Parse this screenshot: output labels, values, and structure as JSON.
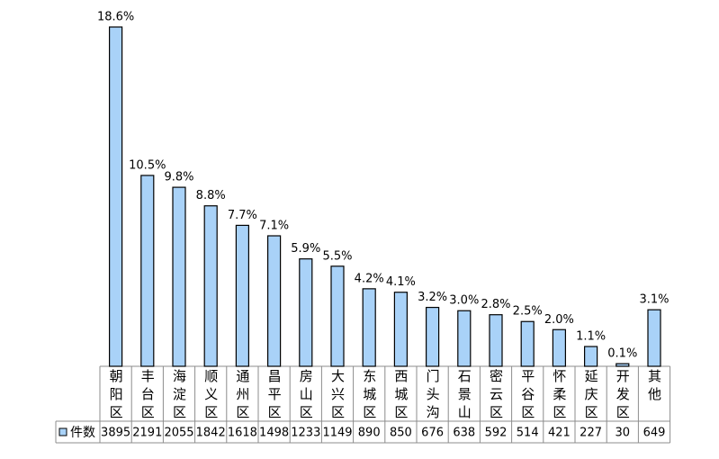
{
  "chart_data": {
    "type": "bar",
    "categories": [
      "朝阳区",
      "丰台区",
      "海淀区",
      "顺义区",
      "通州区",
      "昌平区",
      "房山区",
      "大兴区",
      "东城区",
      "西城区",
      "门头沟",
      "石景山",
      "密云区",
      "平谷区",
      "怀柔区",
      "延庆区",
      "开发区",
      "其他"
    ],
    "series": [
      {
        "name": "件数",
        "color": "#a9d2f8",
        "values": [
          3895,
          2191,
          2055,
          1842,
          1618,
          1498,
          1233,
          1149,
          890,
          850,
          676,
          638,
          592,
          514,
          421,
          227,
          30,
          649
        ],
        "share_labels": [
          "18.6%",
          "10.5%",
          "9.8%",
          "8.8%",
          "7.7%",
          "7.1%",
          "5.9%",
          "5.5%",
          "4.2%",
          "4.1%",
          "3.2%",
          "3.0%",
          "2.8%",
          "2.5%",
          "2.0%",
          "1.1%",
          "0.1%",
          "3.1%"
        ]
      }
    ]
  }
}
